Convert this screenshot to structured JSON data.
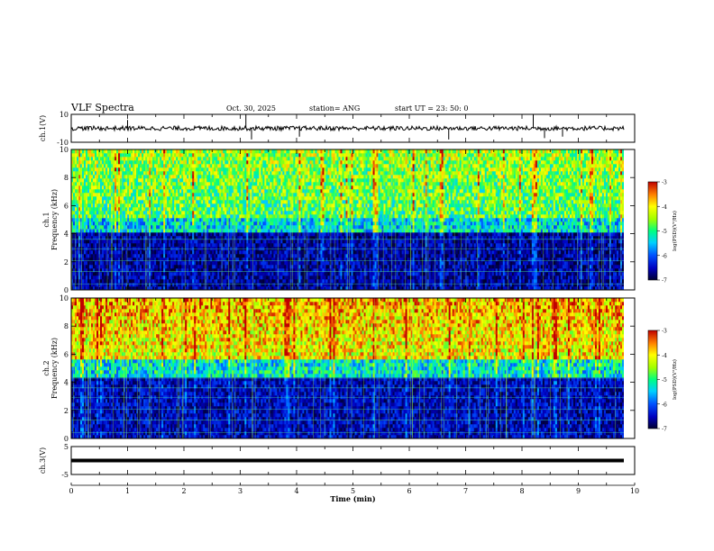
{
  "header": {
    "title": "VLF Spectra",
    "date": "Oct. 30, 2025",
    "station": "station= ANG",
    "start_ut": "start  UT  =   23: 50: 0"
  },
  "chart_data": [
    {
      "type": "line",
      "name": "waveform-ch1",
      "ylabel": "ch.1(V)",
      "ylim": [
        -10,
        10
      ],
      "yticks": [
        "10",
        "-10"
      ],
      "xlim": [
        0,
        10
      ],
      "baseline": 0,
      "spikes": [
        {
          "x": 1.0,
          "y": 6
        },
        {
          "x": 3.1,
          "y": 10
        },
        {
          "x": 3.2,
          "y": -8
        },
        {
          "x": 4.05,
          "y": -6
        },
        {
          "x": 6.7,
          "y": -8
        },
        {
          "x": 8.2,
          "y": 10
        },
        {
          "x": 8.4,
          "y": -7
        },
        {
          "x": 8.72,
          "y": -6
        }
      ]
    },
    {
      "type": "heatmap",
      "name": "spectrogram-ch1",
      "ylabel": "ch.1 Frequency (kHz)",
      "ylim": [
        0,
        10
      ],
      "yticks": [
        "0",
        "2",
        "4",
        "6",
        "8",
        "10"
      ],
      "xlim": [
        0,
        10
      ],
      "colorbar": {
        "label": "log(PSD)(V²/Hz)",
        "range": [
          -7,
          -3
        ],
        "ticks": [
          "-3",
          "-4",
          "-5",
          "-6",
          "-7"
        ]
      },
      "hf_level": -4.6,
      "lf_level": -6.6,
      "transition_khz": 4.8
    },
    {
      "type": "heatmap",
      "name": "spectrogram-ch2",
      "ylabel": "ch.2 Frequency (kHz)",
      "ylim": [
        0,
        10
      ],
      "yticks": [
        "0",
        "2",
        "4",
        "6",
        "8",
        "10"
      ],
      "xlim": [
        0,
        10
      ],
      "colorbar": {
        "label": "log(PSD)(V²/Hz)",
        "range": [
          -7,
          -3
        ],
        "ticks": [
          "-3",
          "-4",
          "-5",
          "-6",
          "-7"
        ]
      },
      "hf_level": -3.9,
      "lf_level": -6.5,
      "transition_khz": 5.2
    },
    {
      "type": "line",
      "name": "waveform-ch3",
      "ylabel": "ch.3(V)",
      "ylim": [
        -5,
        5
      ],
      "yticks": [
        "5",
        "-5"
      ],
      "xlim": [
        0,
        10
      ],
      "xlabel": "Time  (min)",
      "xticks": [
        "0",
        "1",
        "2",
        "3",
        "4",
        "5",
        "6",
        "7",
        "8",
        "9",
        "10"
      ],
      "value": 0
    }
  ],
  "colors": {
    "axis": "#000000",
    "colormap": [
      "#000030",
      "#0000c0",
      "#0050ff",
      "#00d0ff",
      "#00ff80",
      "#a0ff00",
      "#ffff00",
      "#ff8000",
      "#c00000"
    ]
  }
}
